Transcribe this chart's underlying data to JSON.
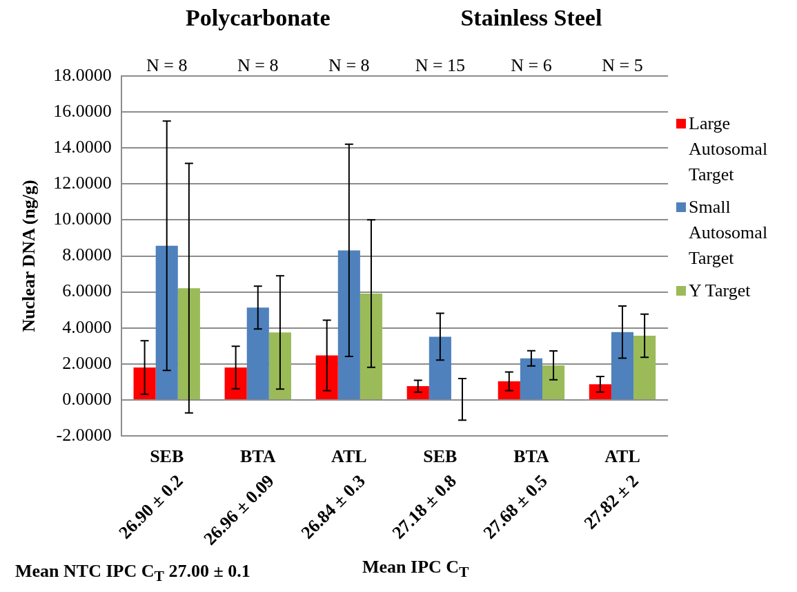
{
  "chart_data": {
    "type": "bar",
    "ylabel": "Nuclear DNA (ng/g)",
    "categories": [
      "SEB",
      "BTA",
      "ATL",
      "SEB",
      "BTA",
      "ATL"
    ],
    "series": [
      {
        "name": "Large Autosomal Target",
        "color": "#ff0000",
        "values": [
          1.8,
          1.8,
          2.47,
          0.76,
          1.03,
          0.87
        ],
        "errors": [
          1.49,
          1.18,
          1.96,
          0.33,
          0.52,
          0.43
        ]
      },
      {
        "name": "Small Autosomal Target",
        "color": "#4f81bd",
        "values": [
          8.57,
          5.13,
          8.31,
          3.51,
          2.31,
          3.77
        ],
        "errors": [
          6.93,
          1.19,
          5.9,
          1.3,
          0.42,
          1.45
        ]
      },
      {
        "name": "Y Target",
        "color": "#9bbb59",
        "values": [
          6.21,
          3.75,
          5.91,
          0.03,
          1.92,
          3.57
        ],
        "errors": [
          6.93,
          3.15,
          4.1,
          1.16,
          0.8,
          1.2
        ]
      }
    ],
    "ylim": [
      -2,
      18
    ],
    "yticks": [
      {
        "value": -2,
        "label": "-2.0000"
      },
      {
        "value": 0,
        "label": "0.0000"
      },
      {
        "value": 2,
        "label": "2.0000"
      },
      {
        "value": 4,
        "label": "4.0000"
      },
      {
        "value": 6,
        "label": "6.0000"
      },
      {
        "value": 8,
        "label": "8.0000"
      },
      {
        "value": 10,
        "label": "10.0000"
      },
      {
        "value": 12,
        "label": "12.0000"
      },
      {
        "value": 14,
        "label": "14.0000"
      },
      {
        "value": 16,
        "label": "16.0000"
      },
      {
        "value": 18,
        "label": "18.0000"
      }
    ],
    "grid": "y",
    "legend": "right",
    "annotations": [
      "Polycarbonate",
      "Stainless Steel",
      "N = 8",
      "N = 8",
      "N = 8",
      "N = 15",
      "N = 6",
      "N = 5",
      "26.90 ± 0.2",
      "26.96 ± 0.09",
      "26.84 ± 0.3",
      "27.18 ± 0.8",
      "27.68 ± 0.5",
      "27.82 ± 2",
      "Mean NTC IPC C$_{T}$ 27.00 ± 0.1",
      "Mean IPC C$_{T}$"
    ]
  }
}
